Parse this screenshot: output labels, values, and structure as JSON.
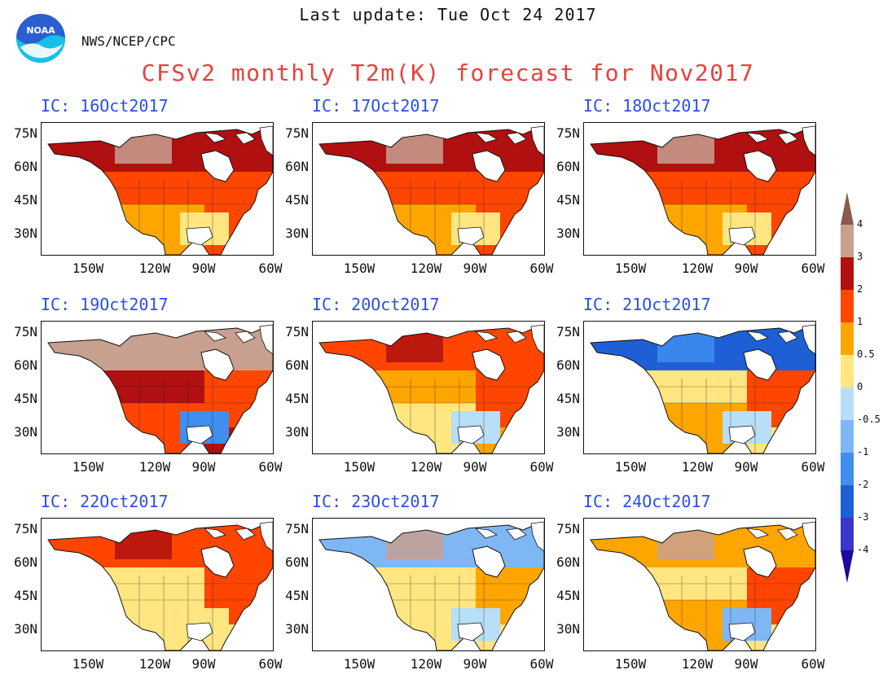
{
  "header": {
    "last_update": "Last update: Tue Oct 24 2017",
    "org": "NWS/NCEP/CPC",
    "logo_text": "NOAA",
    "title": "CFSv2 monthly T2m(K) forecast for Nov2017"
  },
  "axes": {
    "lat_labels": [
      "75N",
      "60N",
      "45N",
      "30N"
    ],
    "lon_labels": [
      "150W",
      "120W",
      "90W",
      "60W"
    ]
  },
  "panels": [
    {
      "label": "IC: 16Oct2017",
      "pattern": "warm-strong"
    },
    {
      "label": "IC: 17Oct2017",
      "pattern": "warm-strong"
    },
    {
      "label": "IC: 18Oct2017",
      "pattern": "warm-strong"
    },
    {
      "label": "IC: 19Oct2017",
      "pattern": "warm-very"
    },
    {
      "label": "IC: 20Oct2017",
      "pattern": "warm-mixed"
    },
    {
      "label": "IC: 21Oct2017",
      "pattern": "cool-north"
    },
    {
      "label": "IC: 22Oct2017",
      "pattern": "warm-mild"
    },
    {
      "label": "IC: 23Oct2017",
      "pattern": "warm-west"
    },
    {
      "label": "IC: 24Oct2017",
      "pattern": "warm-west-cool-east"
    }
  ],
  "colorbar": {
    "levels": [
      "-4",
      "-3",
      "-2",
      "-1",
      "-0.5",
      "0",
      "0.5",
      "1",
      "2",
      "3",
      "4"
    ],
    "colors": [
      "#1a0a9e",
      "#3a36cc",
      "#1f5fd6",
      "#3f8ef0",
      "#7fb7f5",
      "#b8def8",
      "#ffe680",
      "#ffa500",
      "#ff4500",
      "#b01010",
      "#c8a090",
      "#8b5a4a"
    ]
  }
}
